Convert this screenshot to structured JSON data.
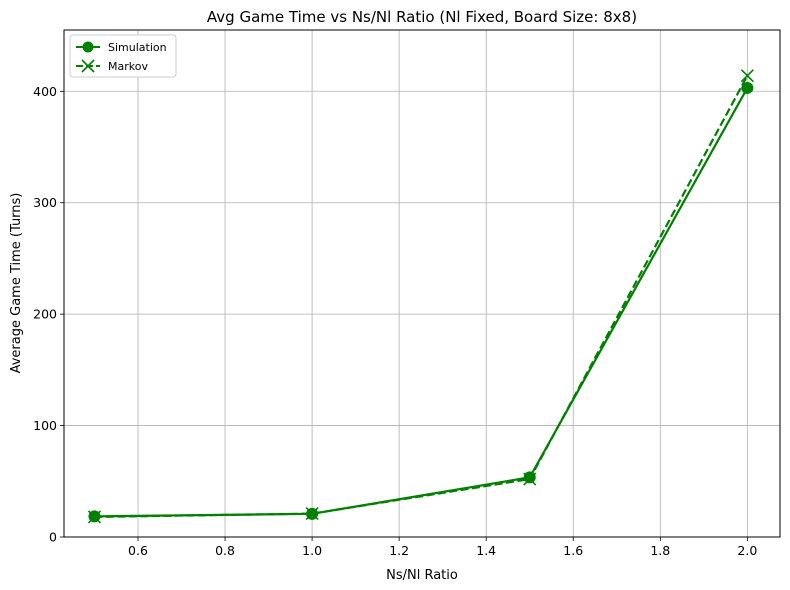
{
  "chart_data": {
    "type": "line",
    "title": "Avg Game Time vs Ns/Nl Ratio (Nl Fixed, Board Size: 8x8)",
    "xlabel": "Ns/Nl Ratio",
    "ylabel": "Average Game Time (Turns)",
    "xlim": [
      0.43,
      2.075
    ],
    "ylim": [
      0,
      455
    ],
    "xticks": [
      0.6,
      0.8,
      1.0,
      1.2,
      1.4,
      1.6,
      1.8,
      2.0
    ],
    "xtick_labels": [
      "0.6",
      "0.8",
      "1.0",
      "1.2",
      "1.4",
      "1.6",
      "1.8",
      "2.0"
    ],
    "yticks": [
      0,
      100,
      200,
      300,
      400
    ],
    "ytick_labels": [
      "0",
      "100",
      "200",
      "300",
      "400"
    ],
    "grid": true,
    "legend_position": "top-left",
    "series": [
      {
        "name": "Simulation",
        "x": [
          0.5,
          1.0,
          1.5,
          2.0
        ],
        "y": [
          18.5,
          20.8,
          53.5,
          403.0
        ],
        "color": "#008000",
        "linestyle": "solid",
        "marker": "circle"
      },
      {
        "name": "Markov",
        "x": [
          0.5,
          1.0,
          1.5,
          2.0
        ],
        "y": [
          18.0,
          21.0,
          52.0,
          414.0
        ],
        "color": "#008000",
        "linestyle": "dashed",
        "marker": "x"
      }
    ]
  }
}
